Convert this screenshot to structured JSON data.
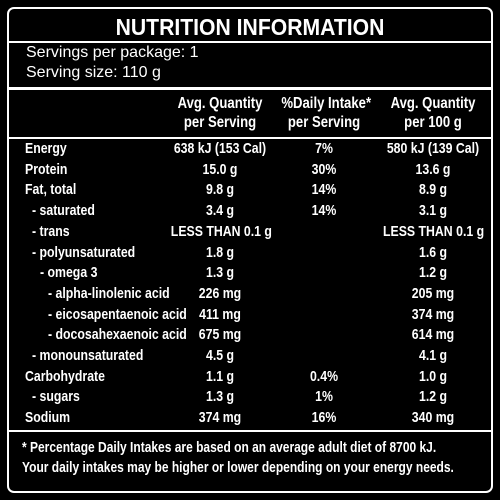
{
  "title": "NUTRITION INFORMATION",
  "servings": [
    "Servings per package: 1",
    "Serving size: 110 g"
  ],
  "table": {
    "header": [
      [
        "Avg. Quantity",
        "per Serving"
      ],
      [
        "%Daily Intake*",
        "per Serving"
      ],
      [
        "Avg. Quantity",
        "per 100 g"
      ]
    ],
    "rows": [
      {
        "label": "Energy",
        "per_serving": "638 kJ (153 Cal)",
        "daily_intake": "7%",
        "per_100g": "580 kJ (139 Cal)"
      },
      {
        "label": "Protein",
        "per_serving": "15.0 g",
        "daily_intake": "30%",
        "per_100g": "13.6 g"
      },
      {
        "label": "Fat, total",
        "per_serving": "9.8 g",
        "daily_intake": "14%",
        "per_100g": "8.9 g"
      },
      {
        "label": "- saturated",
        "per_serving": "3.4 g",
        "daily_intake": "14%",
        "per_100g": "3.1 g"
      },
      {
        "label": "- trans",
        "per_serving": "LESS THAN 0.1 g",
        "per_100g": "LESS THAN 0.1 g"
      },
      {
        "label": "- polyunsaturated",
        "per_serving": "1.8 g",
        "per_100g": "1.6 g"
      },
      {
        "label": "- omega 3",
        "per_serving": "1.3 g",
        "per_100g": "1.2 g"
      },
      {
        "label": "- alpha-linolenic acid",
        "per_serving": "226 mg",
        "per_100g": "205 mg"
      },
      {
        "label": "- eicosapentaenoic acid",
        "per_serving": "411 mg",
        "per_100g": "374 mg"
      },
      {
        "label": "- docosahexaenoic acid",
        "per_serving": "675 mg",
        "per_100g": "614 mg"
      },
      {
        "label": "- monounsaturated",
        "per_serving": "4.5 g",
        "per_100g": "4.1 g"
      },
      {
        "label": "Carbohydrate",
        "per_serving": "1.1 g",
        "daily_intake": "0.4%",
        "per_100g": "1.0 g"
      },
      {
        "label": "- sugars",
        "per_serving": "1.3 g",
        "daily_intake": "1%",
        "per_100g": "1.2 g"
      },
      {
        "label": "Sodium",
        "per_serving": "374 mg",
        "daily_intake": "16%",
        "per_100g": "340 mg"
      }
    ]
  },
  "footnote": [
    "* Percentage Daily Intakes are based on an average adult diet of 8700 kJ.",
    "Your daily intakes may be higher or lower depending on your energy needs."
  ]
}
